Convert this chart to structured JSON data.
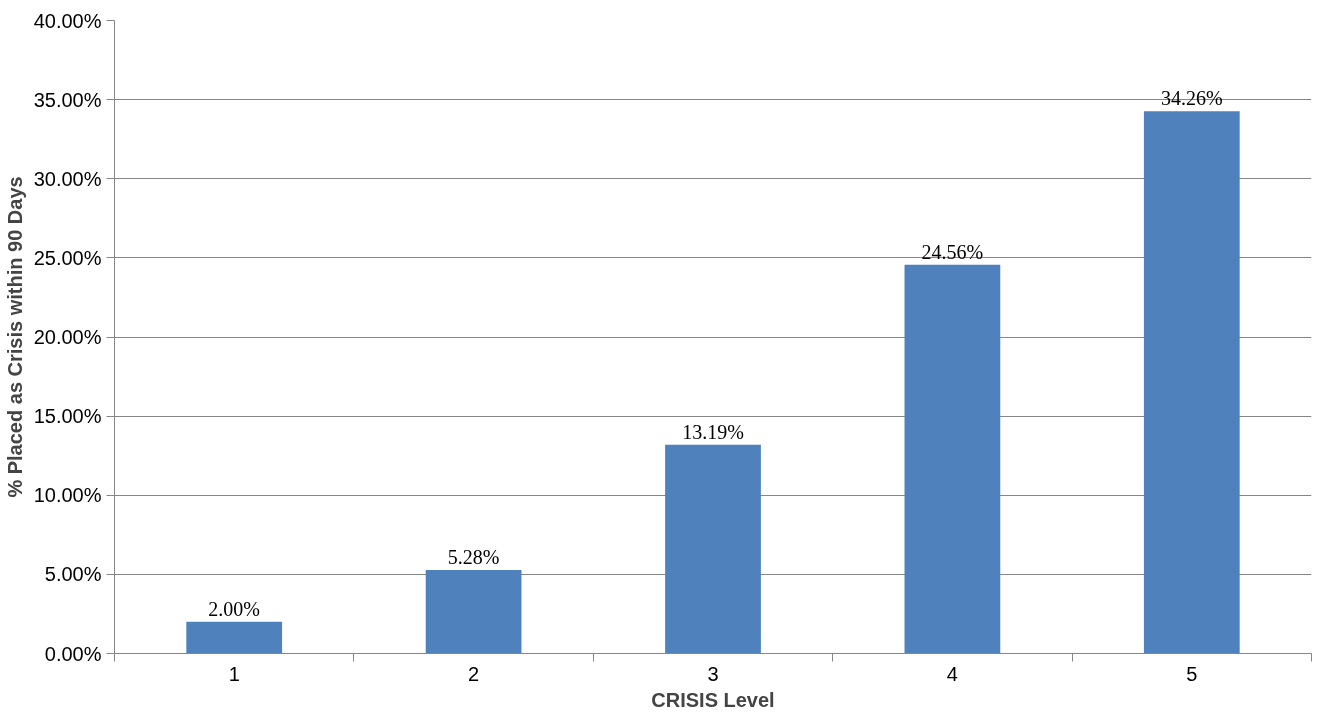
{
  "chart_data": {
    "type": "bar",
    "xlabel": "CRISIS Level",
    "ylabel": "% Placed as Crisis within 90 Days",
    "categories": [
      "1",
      "2",
      "3",
      "4",
      "5"
    ],
    "values": [
      2.0,
      5.28,
      13.19,
      24.56,
      34.26
    ],
    "value_labels": [
      "2.00%",
      "5.28%",
      "13.19%",
      "24.56%",
      "34.26%"
    ],
    "color": "#4f81bd",
    "ylim": [
      0,
      40
    ],
    "yticks": [
      {
        "value": 0,
        "label": "0.00%"
      },
      {
        "value": 5,
        "label": "5.00%"
      },
      {
        "value": 10,
        "label": "10.00%"
      },
      {
        "value": 15,
        "label": "15.00%"
      },
      {
        "value": 20,
        "label": "20.00%"
      },
      {
        "value": 25,
        "label": "25.00%"
      },
      {
        "value": 30,
        "label": "30.00%"
      },
      {
        "value": 35,
        "label": "35.00%"
      },
      {
        "value": 40,
        "label": "40.00%"
      }
    ],
    "grid": "y"
  }
}
